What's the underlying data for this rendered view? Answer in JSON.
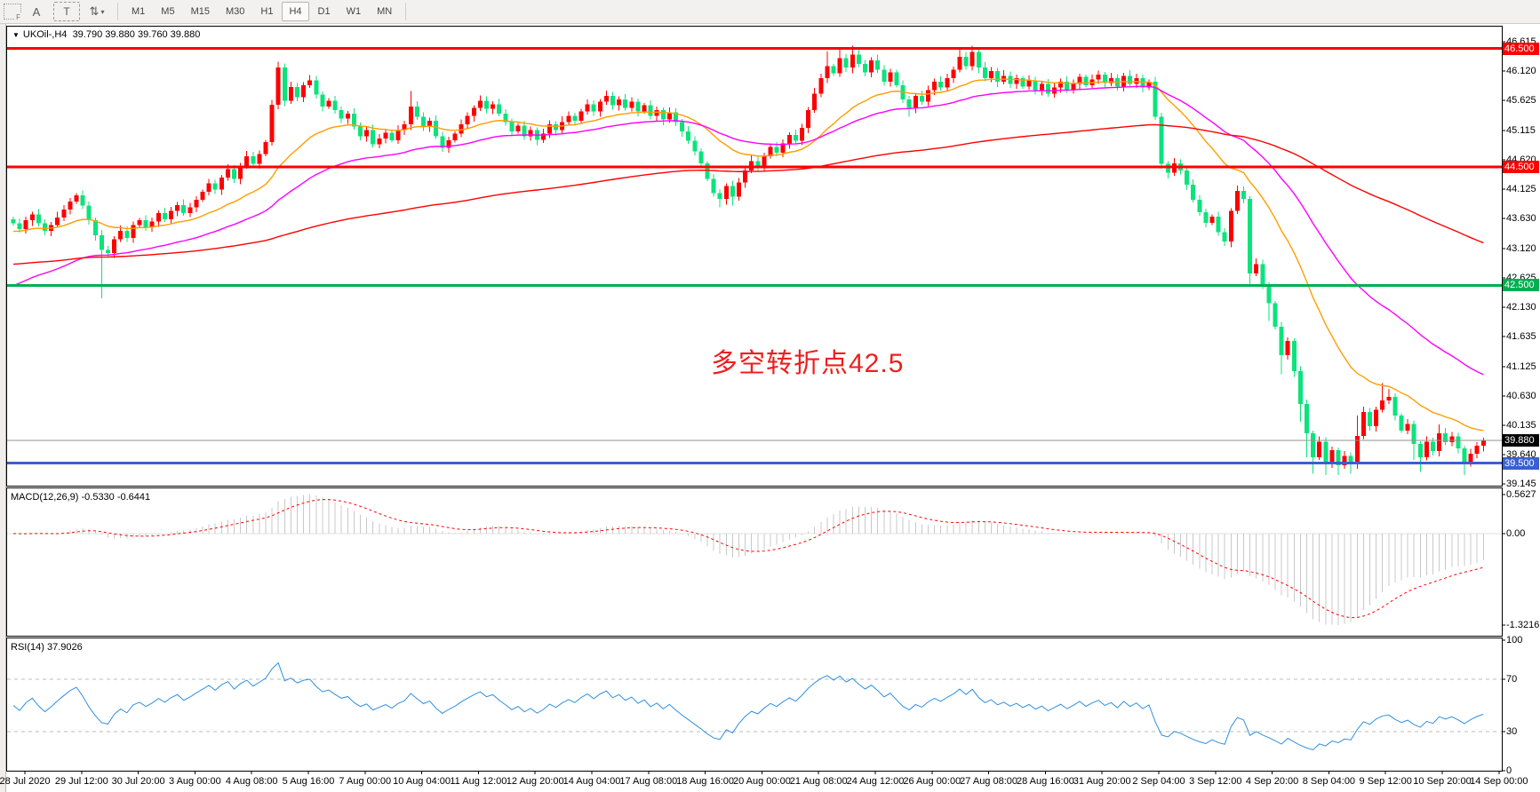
{
  "toolbar": {
    "grip_label": "F",
    "font_tool": "A",
    "text_tool": "T",
    "cursor_tool": "⇅",
    "dropdown_caret": "▾",
    "timeframes": [
      "M1",
      "M5",
      "M15",
      "M30",
      "H1",
      "H4",
      "D1",
      "W1",
      "MN"
    ],
    "active_timeframe": "H4"
  },
  "chart": {
    "symbol_caret": "▼",
    "symbol_period": "UKOil-,H4",
    "ohlc_text": "39.790 39.880 39.760 39.880"
  },
  "annotation": {
    "text": "多空转折点42.5",
    "color": "#ee1f1f"
  },
  "price_axis": {
    "tick_labels": [
      "46.615",
      "46.120",
      "45.625",
      "45.115",
      "44.620",
      "44.125",
      "43.630",
      "43.120",
      "42.625",
      "42.130",
      "41.635",
      "41.125",
      "40.630",
      "40.135",
      "39.640",
      "39.145"
    ],
    "badges": [
      {
        "text": "46.500",
        "price": 46.5,
        "bg": "#ff0000"
      },
      {
        "text": "44.500",
        "price": 44.5,
        "bg": "#ff0000"
      },
      {
        "text": "42.500",
        "price": 42.5,
        "bg": "#00b050"
      },
      {
        "text": "39.500",
        "price": 39.5,
        "bg": "#3a5fd0"
      }
    ],
    "current_badge": {
      "text": "39.880",
      "price": 39.88,
      "bg": "#000000"
    }
  },
  "macd_panel": {
    "label": "MACD(12,26,9)",
    "values": "-0.5330 -0.6441",
    "axis": [
      {
        "text": "0.5627",
        "value": 0.5627
      },
      {
        "text": "0.00",
        "value": 0
      },
      {
        "text": "-1.3216",
        "value": -1.3216
      }
    ]
  },
  "rsi_panel": {
    "label": "RSI(14)",
    "value": "37.9026",
    "axis": [
      {
        "text": "100",
        "value": 100
      },
      {
        "text": "70",
        "value": 70
      },
      {
        "text": "30",
        "value": 30
      },
      {
        "text": "0",
        "value": 0
      }
    ]
  },
  "time_axis": {
    "labels": [
      "28 Jul 2020",
      "29 Jul 12:00",
      "30 Jul 20:00",
      "3 Aug 00:00",
      "4 Aug 08:00",
      "5 Aug 16:00",
      "7 Aug 00:00",
      "10 Aug 04:00",
      "11 Aug 12:00",
      "12 Aug 20:00",
      "14 Aug 04:00",
      "17 Aug 08:00",
      "18 Aug 16:00",
      "20 Aug 00:00",
      "21 Aug 08:00",
      "24 Aug 12:00",
      "26 Aug 00:00",
      "27 Aug 08:00",
      "28 Aug 16:00",
      "31 Aug 20:00",
      "2 Sep 04:00",
      "3 Sep 12:00",
      "4 Sep 20:00",
      "8 Sep 04:00",
      "9 Sep 12:00",
      "10 Sep 20:00",
      "14 Sep 00:00"
    ]
  },
  "chart_data": {
    "type": "candlestick",
    "symbol": "UKOil",
    "timeframe": "H4",
    "ylim": [
      39.145,
      46.615
    ],
    "colors": {
      "up_candle": "#ff0000",
      "down_candle": "#0be37c",
      "current_price_line": "#909090",
      "macd_histogram": "#c8c8c8",
      "macd_signal": "#ff0000",
      "rsi_line": "#2f90e0"
    },
    "levels": [
      {
        "price": 46.5,
        "color": "#ff0000",
        "width": 3
      },
      {
        "price": 44.5,
        "color": "#ff0000",
        "width": 3
      },
      {
        "price": 42.5,
        "color": "#00b050",
        "width": 3
      },
      {
        "price": 39.5,
        "color": "#3a5fd0",
        "width": 3
      }
    ],
    "current_price": 39.88,
    "moving_averages": [
      {
        "name": "ma-fast",
        "period": 21,
        "color": "#ff9d00",
        "seed": 43.4
      },
      {
        "name": "ma-mid",
        "period": 45,
        "color": "#ff00ff",
        "seed": 42.45
      },
      {
        "name": "ma-slow",
        "period": 160,
        "color": "#ff0000",
        "seed": 42.85
      }
    ],
    "macd": {
      "params": [
        12,
        26,
        9
      ],
      "main": -0.533,
      "signal": -0.6441,
      "axis_max": 0.5627,
      "axis_min": -1.3216
    },
    "rsi": {
      "period": 14,
      "value": 37.9026,
      "levels": [
        70,
        30
      ]
    },
    "candles": {
      "first_open": 43.62,
      "closes": [
        43.55,
        43.45,
        43.6,
        43.7,
        43.55,
        43.42,
        43.52,
        43.65,
        43.78,
        43.92,
        44.02,
        43.85,
        43.6,
        43.35,
        43.1,
        43.05,
        43.28,
        43.42,
        43.3,
        43.52,
        43.6,
        43.48,
        43.58,
        43.72,
        43.62,
        43.76,
        43.86,
        43.72,
        43.82,
        43.95,
        44.08,
        44.22,
        44.12,
        44.32,
        44.46,
        44.3,
        44.52,
        44.68,
        44.55,
        44.72,
        44.92,
        45.55,
        46.18,
        45.62,
        45.85,
        45.68,
        45.88,
        45.96,
        45.72,
        45.52,
        45.62,
        45.46,
        45.32,
        45.4,
        45.18,
        45.02,
        45.12,
        44.88,
        44.98,
        45.08,
        44.95,
        45.12,
        45.22,
        45.52,
        45.35,
        45.18,
        45.28,
        45.02,
        44.82,
        44.95,
        45.06,
        45.22,
        45.36,
        45.5,
        45.62,
        45.48,
        45.56,
        45.4,
        45.26,
        45.1,
        45.2,
        45.02,
        45.12,
        44.96,
        45.06,
        45.22,
        45.12,
        45.26,
        45.36,
        45.28,
        45.44,
        45.56,
        45.44,
        45.6,
        45.7,
        45.54,
        45.64,
        45.5,
        45.6,
        45.44,
        45.54,
        45.36,
        45.46,
        45.3,
        45.42,
        45.26,
        45.1,
        44.94,
        44.76,
        44.56,
        44.3,
        44.06,
        43.96,
        44.18,
        44.0,
        44.24,
        44.44,
        44.6,
        44.5,
        44.68,
        44.84,
        44.74,
        44.9,
        45.04,
        44.94,
        45.16,
        45.46,
        45.74,
        46.0,
        46.2,
        46.08,
        46.34,
        46.18,
        46.4,
        46.24,
        46.1,
        46.3,
        46.14,
        45.94,
        46.1,
        45.88,
        45.64,
        45.5,
        45.7,
        45.6,
        45.8,
        45.94,
        45.84,
        46.0,
        46.14,
        46.36,
        46.2,
        46.44,
        46.18,
        46.0,
        46.12,
        45.94,
        46.04,
        45.9,
        46.0,
        45.86,
        45.96,
        45.8,
        45.9,
        45.74,
        45.84,
        45.94,
        45.8,
        45.9,
        46.02,
        45.88,
        45.98,
        46.06,
        45.92,
        46.0,
        45.86,
        46.04,
        45.9,
        46.0,
        45.84,
        45.94,
        45.35,
        44.55,
        44.4,
        44.56,
        44.44,
        44.2,
        43.95,
        43.74,
        43.56,
        43.66,
        43.4,
        43.24,
        43.76,
        44.1,
        43.96,
        42.7,
        42.86,
        42.5,
        42.2,
        41.8,
        41.32,
        41.56,
        41.05,
        40.5,
        40.0,
        39.6,
        39.86,
        39.5,
        39.72,
        39.46,
        39.62,
        39.5,
        39.96,
        40.36,
        40.12,
        40.4,
        40.56,
        40.62,
        40.3,
        40.05,
        40.16,
        39.82,
        39.6,
        39.86,
        39.7,
        40.0,
        39.85,
        39.95,
        39.75,
        39.5,
        39.66,
        39.79,
        39.88
      ],
      "high_overrides": {
        "42": 46.28,
        "43": 46.25,
        "63": 45.78,
        "129": 46.45,
        "131": 46.5,
        "133": 46.55,
        "150": 46.5,
        "152": 46.55,
        "213": 40.3,
        "214": 40.45,
        "217": 40.85,
        "218": 40.75,
        "226": 40.15,
        "233": 39.88
      },
      "low_overrides": {
        "14": 42.28,
        "112": 43.82,
        "114": 43.85,
        "142": 45.35,
        "196": 42.5,
        "199": 41.9,
        "201": 41.0,
        "204": 40.2,
        "205": 39.6,
        "206": 39.32,
        "208": 39.3,
        "210": 39.3,
        "212": 39.32,
        "222": 39.55,
        "223": 39.35,
        "230": 39.3,
        "233": 39.76
      }
    }
  }
}
